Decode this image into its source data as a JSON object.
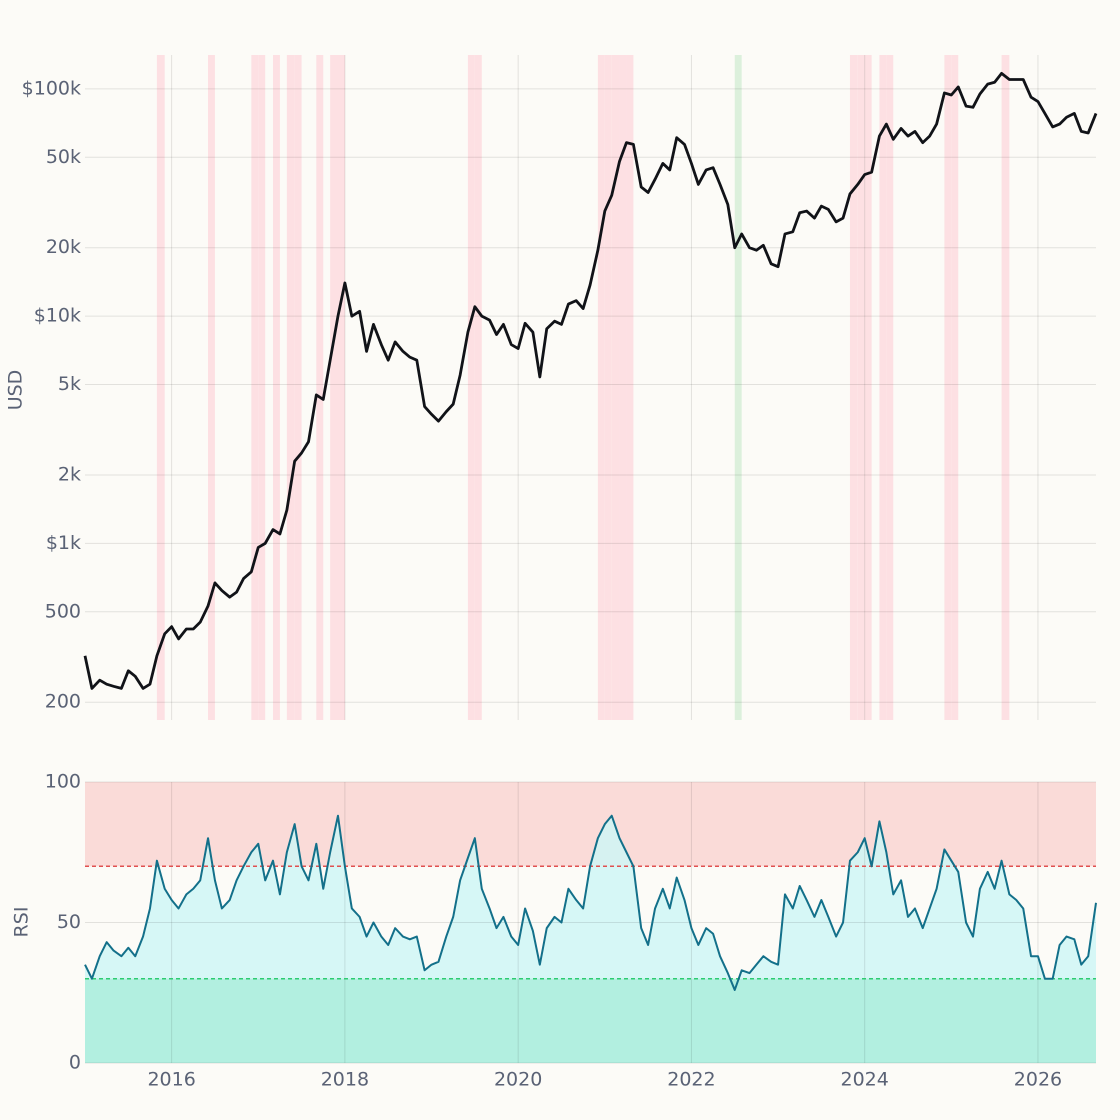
{
  "chart_data": {
    "type": "line",
    "ylabel": "USD",
    "y2label": "RSI",
    "log_scale": true,
    "grid": true,
    "overbought": 70,
    "oversold": 30,
    "overbought_color": "#fadbd8",
    "oversold_color": "#b2efe0",
    "xlim": [
      2015,
      2026.67
    ],
    "xticks": [
      2016,
      2018,
      2020,
      2022,
      2024,
      2026
    ],
    "ylim": [
      167,
      141000
    ],
    "yticks": [
      200,
      500,
      {
        "value": 1000,
        "label": "$1k"
      },
      {
        "value": 2000,
        "label": "2k"
      },
      {
        "value": 5000,
        "label": "5k"
      },
      {
        "value": 10000,
        "label": "$10k"
      },
      {
        "value": 20000,
        "label": "20k"
      },
      {
        "value": 50000,
        "label": "50k"
      },
      {
        "value": 100000,
        "label": "$100k"
      }
    ],
    "y2lim": [
      0,
      100
    ],
    "y2ticks": [
      0,
      50,
      100
    ],
    "x": [
      2015.0,
      2015.08,
      2015.17,
      2015.25,
      2015.33,
      2015.42,
      2015.5,
      2015.58,
      2015.67,
      2015.75,
      2015.83,
      2015.92,
      2016.0,
      2016.08,
      2016.17,
      2016.25,
      2016.33,
      2016.42,
      2016.5,
      2016.58,
      2016.67,
      2016.75,
      2016.83,
      2016.92,
      2017.0,
      2017.08,
      2017.17,
      2017.25,
      2017.33,
      2017.42,
      2017.5,
      2017.58,
      2017.67,
      2017.75,
      2017.83,
      2017.92,
      2018.0,
      2018.08,
      2018.17,
      2018.25,
      2018.33,
      2018.42,
      2018.5,
      2018.58,
      2018.67,
      2018.75,
      2018.83,
      2018.92,
      2019.0,
      2019.08,
      2019.17,
      2019.25,
      2019.33,
      2019.42,
      2019.5,
      2019.58,
      2019.67,
      2019.75,
      2019.83,
      2019.92,
      2020.0,
      2020.08,
      2020.17,
      2020.25,
      2020.33,
      2020.42,
      2020.5,
      2020.58,
      2020.67,
      2020.75,
      2020.83,
      2020.92,
      2021.0,
      2021.08,
      2021.17,
      2021.25,
      2021.33,
      2021.42,
      2021.5,
      2021.58,
      2021.67,
      2021.75,
      2021.83,
      2021.92,
      2022.0,
      2022.08,
      2022.17,
      2022.25,
      2022.33,
      2022.42,
      2022.5,
      2022.58,
      2022.67,
      2022.75,
      2022.83,
      2022.92,
      2023.0,
      2023.08,
      2023.17,
      2023.25,
      2023.33,
      2023.42,
      2023.5,
      2023.58,
      2023.67,
      2023.75,
      2023.83,
      2023.92,
      2024.0,
      2024.08,
      2024.17,
      2024.25,
      2024.33,
      2024.42,
      2024.5,
      2024.58,
      2024.67,
      2024.75,
      2024.83,
      2024.92,
      2025.0,
      2025.08,
      2025.17,
      2025.25,
      2025.33,
      2025.42,
      2025.5,
      2025.58,
      2025.67,
      2025.75,
      2025.83,
      2025.92,
      2026.0,
      2026.08,
      2026.17,
      2026.25,
      2026.33,
      2026.42,
      2026.5,
      2026.58,
      2026.67
    ],
    "series": [
      {
        "color": "#111318",
        "values": [
          320,
          230,
          250,
          240,
          235,
          230,
          275,
          260,
          230,
          240,
          320,
          400,
          430,
          380,
          420,
          420,
          450,
          530,
          670,
          620,
          580,
          610,
          700,
          750,
          960,
          1000,
          1150,
          1100,
          1400,
          2300,
          2500,
          2800,
          4500,
          4300,
          6400,
          10000,
          14000,
          10000,
          10500,
          7000,
          9200,
          7500,
          6400,
          7700,
          7000,
          6600,
          6400,
          4000,
          3700,
          3450,
          3800,
          4100,
          5500,
          8500,
          11000,
          10000,
          9600,
          8300,
          9200,
          7500,
          7200,
          9300,
          8500,
          5400,
          8800,
          9500,
          9200,
          11300,
          11700,
          10800,
          13700,
          19500,
          29000,
          34000,
          48000,
          58000,
          57000,
          37000,
          35000,
          40000,
          47000,
          44000,
          61000,
          57000,
          47000,
          38000,
          44000,
          45000,
          38000,
          31000,
          20000,
          23000,
          20000,
          19500,
          20500,
          17000,
          16500,
          23000,
          23500,
          28500,
          29000,
          27000,
          30500,
          29500,
          26000,
          27000,
          34500,
          38000,
          42000,
          43000,
          62000,
          70000,
          60000,
          67000,
          62000,
          65000,
          58000,
          62000,
          70000,
          96000,
          94000,
          102000,
          84000,
          83000,
          95000,
          105000,
          107000,
          117000,
          110000,
          110000,
          110000,
          92000,
          88000,
          78000,
          68000,
          70000,
          75000,
          78000,
          65000,
          64000,
          78000
        ]
      },
      {
        "color": "#13708a",
        "axis": "y2",
        "values": [
          35,
          30,
          38,
          43,
          40,
          38,
          41,
          38,
          45,
          55,
          72,
          62,
          58,
          55,
          60,
          62,
          65,
          80,
          65,
          55,
          58,
          65,
          70,
          75,
          78,
          65,
          72,
          60,
          75,
          85,
          70,
          65,
          78,
          62,
          75,
          88,
          70,
          55,
          52,
          45,
          50,
          45,
          42,
          48,
          45,
          44,
          45,
          33,
          35,
          36,
          45,
          52,
          65,
          73,
          80,
          62,
          55,
          48,
          52,
          45,
          42,
          55,
          47,
          35,
          48,
          52,
          50,
          62,
          58,
          55,
          70,
          80,
          85,
          88,
          80,
          75,
          70,
          48,
          42,
          55,
          62,
          55,
          66,
          58,
          48,
          42,
          48,
          46,
          38,
          32,
          26,
          33,
          32,
          35,
          38,
          36,
          35,
          60,
          55,
          63,
          58,
          52,
          58,
          52,
          45,
          50,
          72,
          75,
          80,
          70,
          86,
          75,
          60,
          65,
          52,
          55,
          48,
          55,
          62,
          76,
          72,
          68,
          50,
          45,
          62,
          68,
          62,
          72,
          60,
          58,
          55,
          38,
          38,
          30,
          30,
          42,
          45,
          44,
          35,
          38,
          57
        ]
      }
    ]
  }
}
